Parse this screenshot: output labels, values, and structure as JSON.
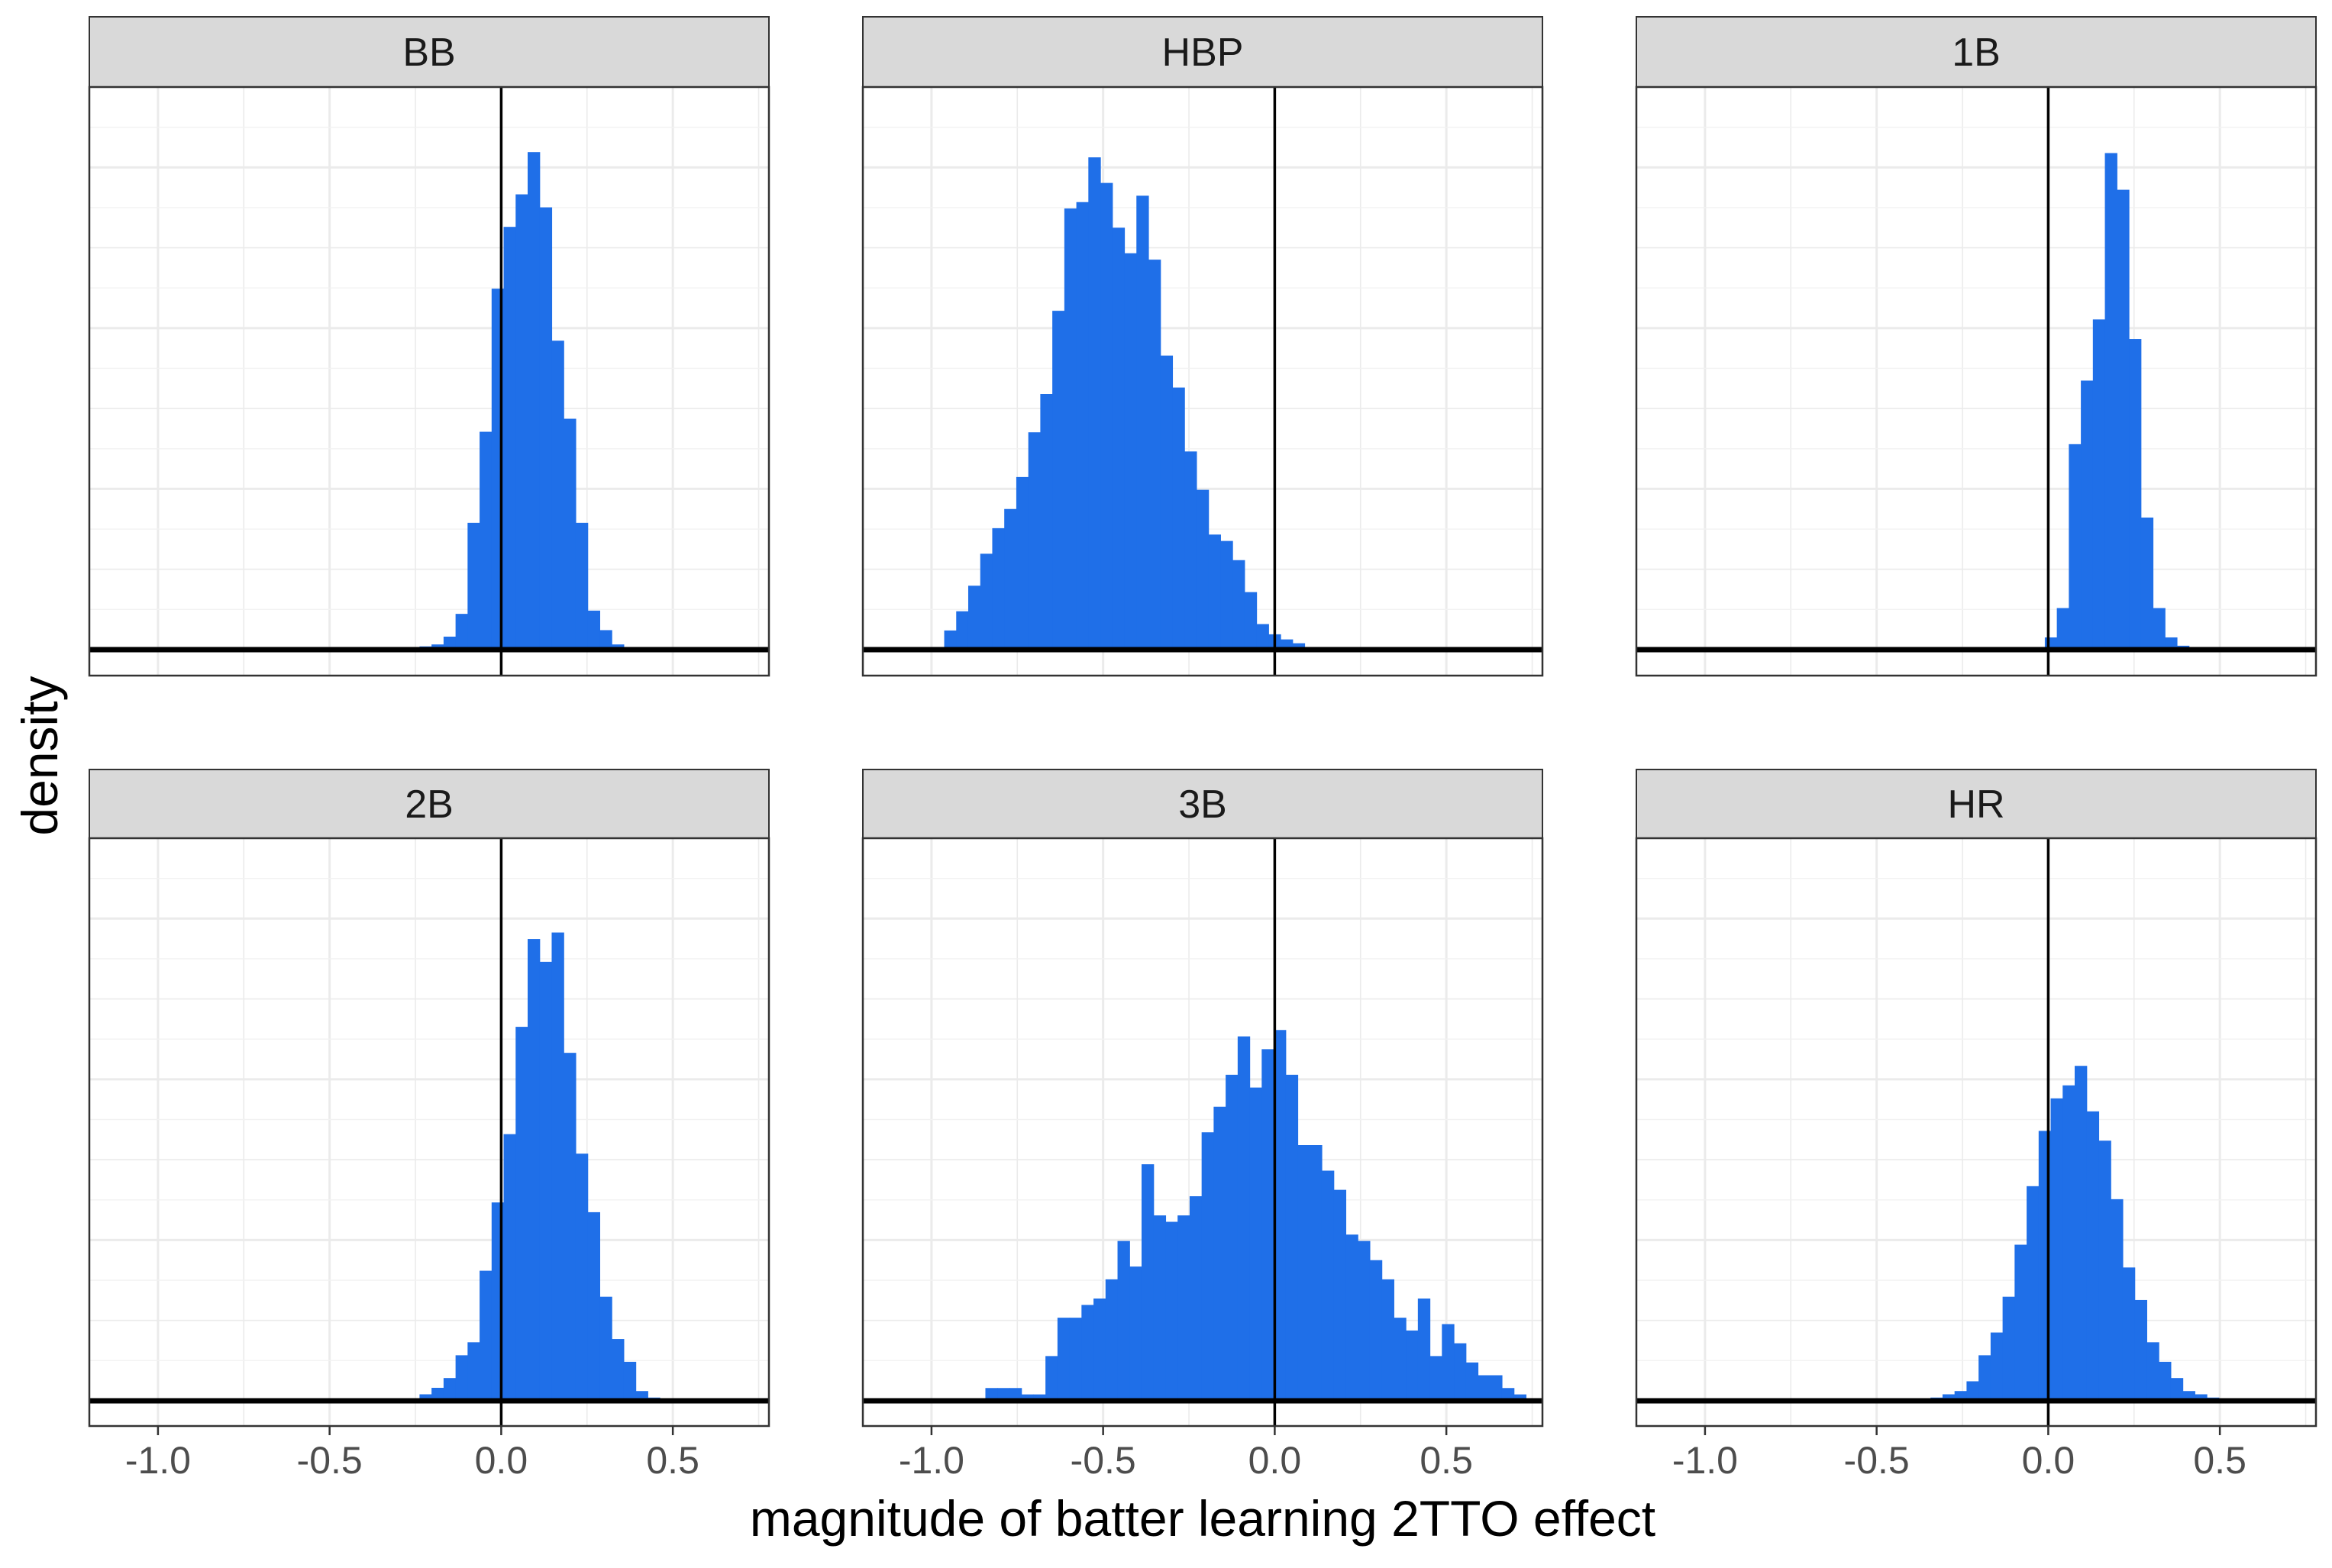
{
  "chart_data": {
    "type": "bar",
    "subtype": "faceted-histogram",
    "xlabel": "magnitude of batter learning 2TTO effect",
    "ylabel": "density",
    "xlim": [
      -1.2,
      0.78
    ],
    "x_ticks": [
      -1.0,
      -0.5,
      0.0,
      0.5
    ],
    "x_tick_labels": [
      "-1.0",
      "-0.5",
      "0.0",
      "0.5"
    ],
    "y_tick_labels_shown": false,
    "reference_line_x": 0,
    "bin_width": 0.035,
    "bar_color": "#1f6fe8",
    "grid": true,
    "facets": [
      {
        "name": "BB",
        "bins_x": [
          -0.238,
          -0.203,
          -0.168,
          -0.133,
          -0.098,
          -0.063,
          -0.028,
          0.007,
          0.042,
          0.077,
          0.112,
          0.147,
          0.182,
          0.217,
          0.252,
          0.287,
          0.322,
          0.357
        ],
        "density": [
          0.05,
          0.08,
          0.2,
          0.55,
          1.95,
          3.35,
          5.55,
          6.5,
          7.0,
          7.65,
          6.8,
          4.75,
          3.55,
          1.95,
          0.6,
          0.3,
          0.08,
          0.02
        ]
      },
      {
        "name": "HBP",
        "bins_x": [
          -0.963,
          -0.928,
          -0.893,
          -0.858,
          -0.823,
          -0.788,
          -0.753,
          -0.718,
          -0.683,
          -0.648,
          -0.613,
          -0.578,
          -0.543,
          -0.508,
          -0.473,
          -0.438,
          -0.403,
          -0.368,
          -0.333,
          -0.298,
          -0.263,
          -0.228,
          -0.193,
          -0.158,
          -0.123,
          -0.088,
          -0.053,
          -0.018,
          0.017,
          0.052
        ],
        "density": [
          0.15,
          0.3,
          0.5,
          0.75,
          0.95,
          1.1,
          1.35,
          1.7,
          2.0,
          2.65,
          3.45,
          3.5,
          3.85,
          3.65,
          3.3,
          3.1,
          3.55,
          3.05,
          2.3,
          2.05,
          1.55,
          1.25,
          0.9,
          0.85,
          0.7,
          0.45,
          0.2,
          0.12,
          0.08,
          0.05
        ]
      },
      {
        "name": "1B",
        "bins_x": [
          -0.045,
          -0.01,
          0.025,
          0.06,
          0.095,
          0.13,
          0.165,
          0.2,
          0.235,
          0.27,
          0.305,
          0.34,
          0.375
        ],
        "density": [
          0.05,
          0.25,
          0.85,
          4.2,
          5.5,
          6.75,
          10.15,
          9.4,
          6.35,
          2.7,
          0.85,
          0.25,
          0.08
        ]
      },
      {
        "name": "2B",
        "bins_x": [
          -0.238,
          -0.203,
          -0.168,
          -0.133,
          -0.098,
          -0.063,
          -0.028,
          0.007,
          0.042,
          0.077,
          0.112,
          0.147,
          0.182,
          0.217,
          0.252,
          0.287,
          0.322,
          0.357,
          0.392,
          0.427
        ],
        "density": [
          0.1,
          0.2,
          0.35,
          0.7,
          0.9,
          2.0,
          3.05,
          4.1,
          5.75,
          7.1,
          6.75,
          7.2,
          5.35,
          3.8,
          2.9,
          1.6,
          0.95,
          0.6,
          0.15,
          0.05
        ]
      },
      {
        "name": "3B",
        "bins_x": [
          -0.843,
          -0.808,
          -0.773,
          -0.738,
          -0.703,
          -0.668,
          -0.633,
          -0.598,
          -0.563,
          -0.528,
          -0.493,
          -0.458,
          -0.423,
          -0.388,
          -0.353,
          -0.318,
          -0.283,
          -0.248,
          -0.213,
          -0.178,
          -0.143,
          -0.108,
          -0.073,
          -0.038,
          -0.003,
          0.032,
          0.067,
          0.102,
          0.137,
          0.172,
          0.207,
          0.242,
          0.277,
          0.312,
          0.347,
          0.382,
          0.417,
          0.452,
          0.487,
          0.522,
          0.557,
          0.592,
          0.627,
          0.662,
          0.697
        ],
        "density": [
          0.1,
          0.1,
          0.1,
          0.05,
          0.05,
          0.35,
          0.65,
          0.65,
          0.75,
          0.8,
          0.95,
          1.25,
          1.05,
          1.85,
          1.45,
          1.4,
          1.45,
          1.6,
          2.1,
          2.3,
          2.55,
          2.85,
          2.45,
          2.75,
          2.9,
          2.55,
          2.0,
          2.0,
          1.8,
          1.65,
          1.3,
          1.25,
          1.1,
          0.95,
          0.65,
          0.55,
          0.8,
          0.35,
          0.6,
          0.45,
          0.3,
          0.2,
          0.2,
          0.1,
          0.05
        ]
      },
      {
        "name": "HR",
        "bins_x": [
          -0.343,
          -0.308,
          -0.273,
          -0.238,
          -0.203,
          -0.168,
          -0.133,
          -0.098,
          -0.063,
          -0.028,
          0.007,
          0.042,
          0.077,
          0.112,
          0.147,
          0.182,
          0.217,
          0.252,
          0.287,
          0.322,
          0.357,
          0.392,
          0.427,
          0.462
        ],
        "density": [
          0.05,
          0.1,
          0.15,
          0.3,
          0.7,
          1.05,
          1.6,
          2.4,
          3.3,
          4.15,
          4.65,
          4.85,
          5.15,
          4.45,
          4.0,
          3.1,
          2.05,
          1.55,
          0.9,
          0.6,
          0.35,
          0.15,
          0.1,
          0.05
        ]
      }
    ],
    "panel_y_max": [
      8.65,
      4.4,
      11.5,
      8.65,
      4.4,
      8.65
    ]
  }
}
